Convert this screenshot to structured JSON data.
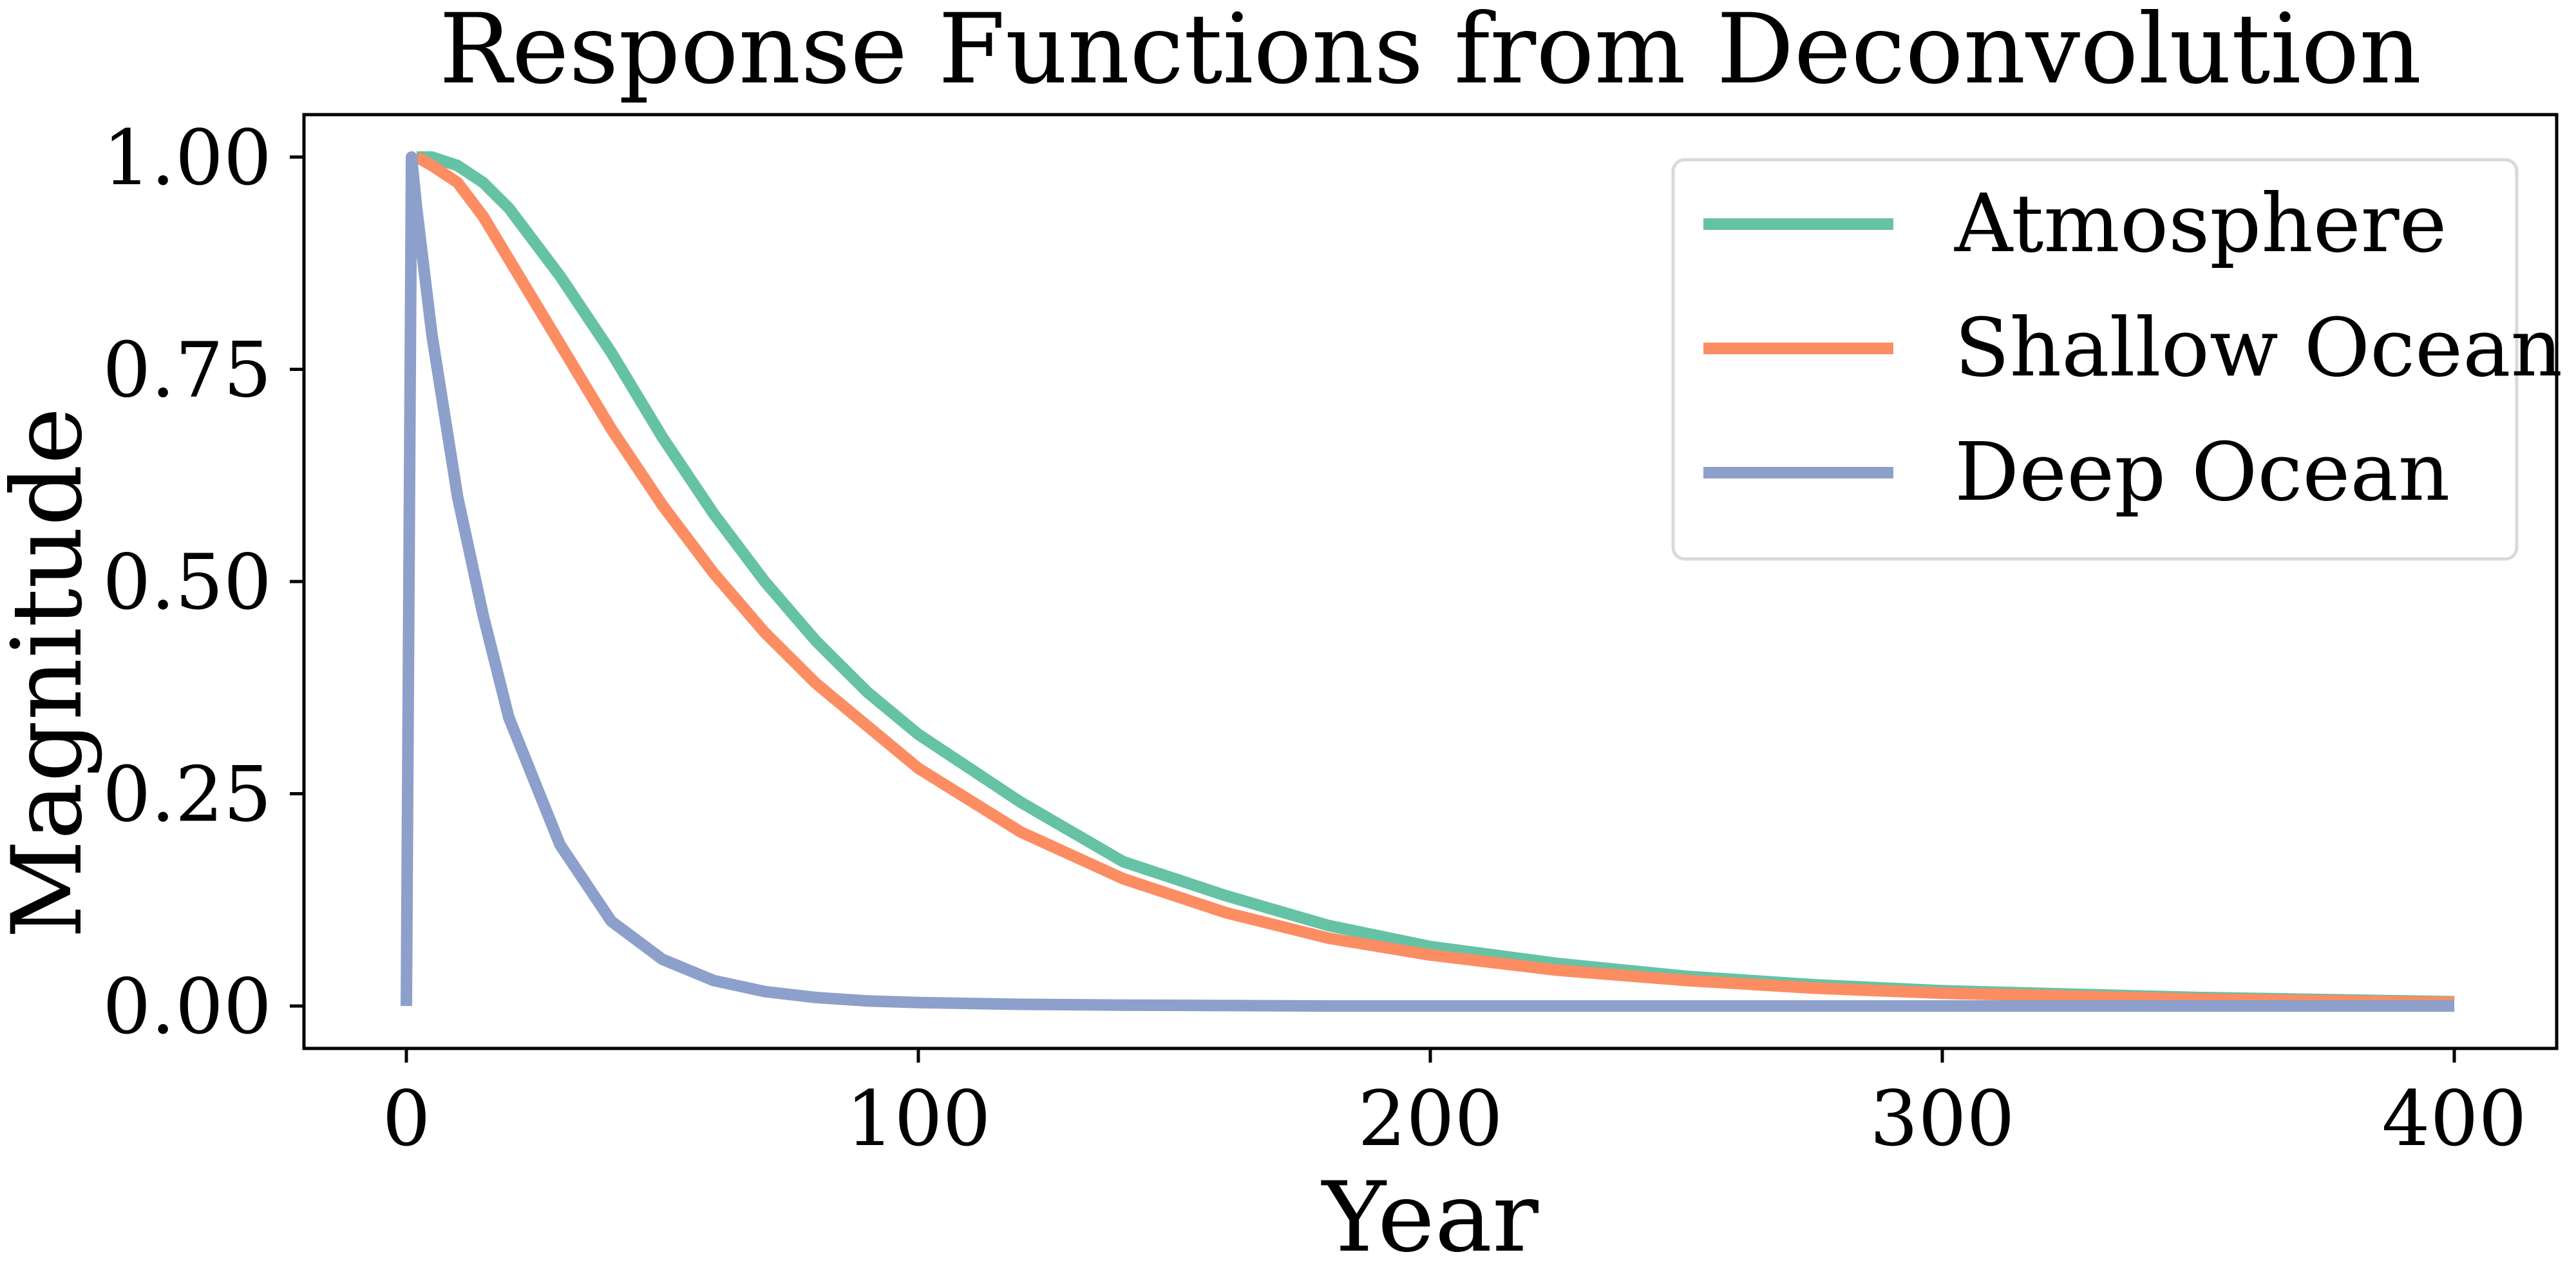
{
  "chart_data": {
    "type": "line",
    "title": "Response Functions from Deconvolution",
    "xlabel": "Year",
    "ylabel": "Magnitude",
    "xlim": [
      -20,
      420
    ],
    "ylim": [
      -0.05,
      1.05
    ],
    "xticks": [
      0,
      100,
      200,
      300,
      400
    ],
    "xtick_labels": [
      "0",
      "100",
      "200",
      "300",
      "400"
    ],
    "yticks": [
      0,
      0.25,
      0.5,
      0.75,
      1.0
    ],
    "ytick_labels": [
      "0.00",
      "0.25",
      "0.50",
      "0.75",
      "1.00"
    ],
    "grid": false,
    "legend_position": "top-right",
    "x": [
      0,
      1,
      2,
      5,
      10,
      15,
      20,
      30,
      40,
      50,
      60,
      70,
      80,
      90,
      100,
      120,
      140,
      160,
      180,
      200,
      225,
      250,
      275,
      300,
      350,
      400
    ],
    "series": [
      {
        "name": "Atmosphere",
        "color": "#66c2a5",
        "values": [
          null,
          null,
          1.0,
          1.0,
          0.99,
          0.97,
          0.94,
          0.86,
          0.77,
          0.67,
          0.58,
          0.5,
          0.43,
          0.37,
          0.32,
          0.24,
          0.17,
          0.13,
          0.095,
          0.07,
          0.05,
          0.035,
          0.025,
          0.018,
          0.01,
          0.005
        ]
      },
      {
        "name": "Shallow Ocean",
        "color": "#fc8d62",
        "values": [
          null,
          null,
          1.0,
          0.99,
          0.97,
          0.93,
          0.88,
          0.78,
          0.68,
          0.59,
          0.51,
          0.44,
          0.38,
          0.33,
          0.28,
          0.205,
          0.15,
          0.11,
          0.08,
          0.06,
          0.042,
          0.03,
          0.021,
          0.015,
          0.008,
          0.004
        ]
      },
      {
        "name": "Deep Ocean",
        "color": "#8da0cb",
        "values": [
          0.0,
          1.0,
          0.94,
          0.79,
          0.6,
          0.46,
          0.34,
          0.19,
          0.1,
          0.055,
          0.03,
          0.017,
          0.01,
          0.006,
          0.004,
          0.002,
          0.001,
          0.0005,
          0.0,
          0.0,
          0.0,
          0.0,
          0.0,
          0.0,
          0.0,
          0.0
        ]
      }
    ]
  }
}
